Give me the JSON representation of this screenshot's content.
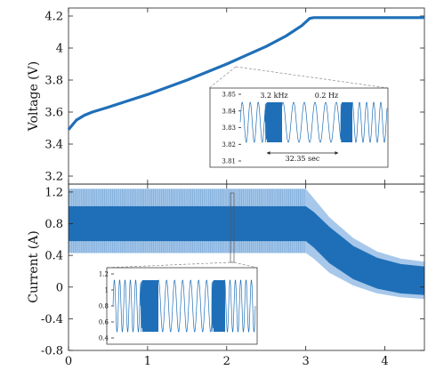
{
  "colors": {
    "series": "#1f6fb8",
    "series_light": "#a7c8ea",
    "axis": "#222222",
    "connector": "#888888"
  },
  "chart_data": [
    {
      "type": "line",
      "ylabel": "Voltage (V)",
      "xlim": [
        0,
        4.5
      ],
      "ylim": [
        3.15,
        4.25
      ],
      "yticks": [
        3.2,
        3.4,
        3.6,
        3.8,
        4.0,
        4.2
      ],
      "ytick_labels": [
        "3.2",
        "3.4",
        "3.6",
        "3.8",
        "4",
        "4.2"
      ],
      "x": [
        0,
        0.05,
        0.1,
        0.2,
        0.3,
        0.5,
        0.75,
        1.0,
        1.25,
        1.5,
        1.75,
        2.0,
        2.25,
        2.5,
        2.75,
        2.95,
        3.05,
        3.1,
        3.5,
        4.0,
        4.5
      ],
      "y": [
        3.49,
        3.52,
        3.55,
        3.58,
        3.6,
        3.63,
        3.67,
        3.71,
        3.755,
        3.8,
        3.85,
        3.9,
        3.955,
        4.01,
        4.075,
        4.14,
        4.185,
        4.19,
        4.19,
        4.19,
        4.19
      ],
      "inset": {
        "yticks": [
          "3.85",
          "3.84",
          "3.83",
          "3.82",
          "3.81"
        ],
        "ylim": [
          3.805,
          3.855
        ],
        "annotations": [
          "3.2 kHz",
          "0.2 Hz",
          "32.35 sec"
        ]
      }
    },
    {
      "type": "area",
      "xlabel": "",
      "ylabel": "Current (A)",
      "xlim": [
        0,
        4.5
      ],
      "ylim": [
        -0.8,
        1.3
      ],
      "xticks": [
        "0",
        "1",
        "2",
        "3",
        "4"
      ],
      "yticks": [
        -0.8,
        -0.4,
        0,
        0.4,
        0.8,
        1.2
      ],
      "ytick_labels": [
        "-0.8",
        "-0.4",
        "0",
        "0.4",
        "0.8",
        "1.2"
      ],
      "x": [
        0,
        3.0,
        3.1,
        3.3,
        3.6,
        3.9,
        4.2,
        4.5
      ],
      "envelope_light_upper": [
        1.24,
        1.24,
        1.12,
        0.88,
        0.62,
        0.45,
        0.36,
        0.32
      ],
      "envelope_light_lower": [
        0.43,
        0.43,
        0.36,
        0.18,
        0.02,
        -0.08,
        -0.13,
        -0.15
      ],
      "envelope_dark_upper": [
        1.02,
        1.02,
        0.95,
        0.76,
        0.52,
        0.37,
        0.29,
        0.26
      ],
      "envelope_dark_lower": [
        0.58,
        0.58,
        0.5,
        0.3,
        0.1,
        -0.02,
        -0.08,
        -0.1
      ],
      "inset": {
        "yticks": [
          "1.2",
          "1",
          "0.8",
          "0.6",
          "0.4"
        ],
        "ylim": [
          0.4,
          1.2
        ]
      }
    }
  ]
}
